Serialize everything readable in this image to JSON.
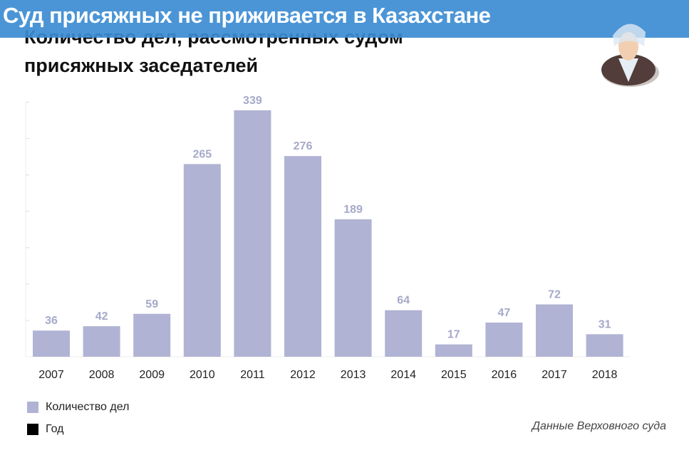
{
  "banner": {
    "title": "Суд присяжных не приживается в Казахстане"
  },
  "source": "Данные Верховного суда",
  "colors": {
    "bar": "#b0b3d3",
    "label": "#a6a9c9",
    "year": "#000000",
    "banner": "#4f97d6"
  },
  "chart_data": {
    "type": "bar",
    "title": "Количество дел, рассмотренных судом присяжных заседателей",
    "categories": [
      "2007",
      "2008",
      "2009",
      "2010",
      "2011",
      "2012",
      "2013",
      "2014",
      "2015",
      "2016",
      "2017",
      "2018"
    ],
    "values": [
      36,
      42,
      59,
      265,
      339,
      276,
      189,
      64,
      17,
      47,
      72,
      31
    ],
    "legend": [
      "Количество дел",
      "Год"
    ],
    "legend_placement": "bottom-left",
    "ylim": [
      0,
      350
    ],
    "xlabel": "",
    "ylabel": ""
  }
}
